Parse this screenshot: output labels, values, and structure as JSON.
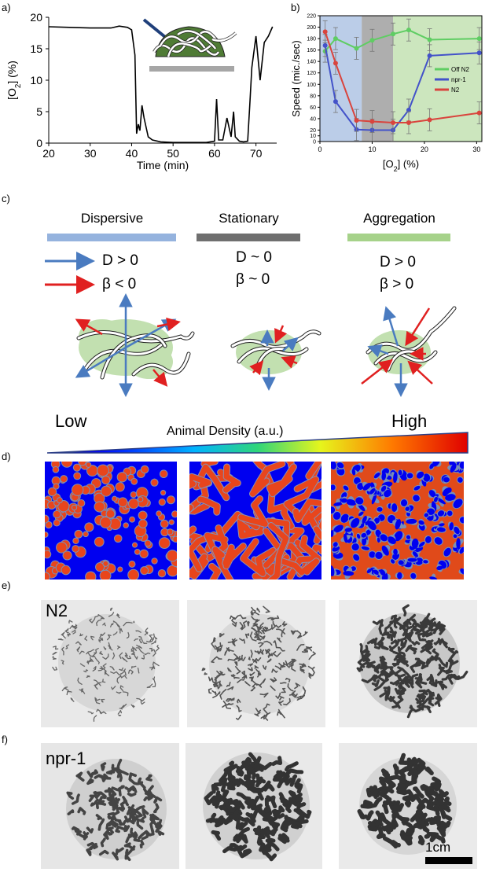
{
  "panel_labels": {
    "a": "a)",
    "b": "b)",
    "c": "c)",
    "d": "d)",
    "e": "e)",
    "f": "f)"
  },
  "chart_data": [
    {
      "panel": "a",
      "type": "line",
      "xlabel": "Time (min)",
      "ylabel": "[O2] (%)",
      "xlim": [
        20,
        75
      ],
      "ylim": [
        0,
        20
      ],
      "xticks": [
        "20",
        "30",
        "40",
        "50",
        "60",
        "70"
      ],
      "yticks": [
        "0",
        "5",
        "10",
        "15",
        "20"
      ],
      "x": [
        20,
        25,
        30,
        35,
        37,
        39,
        40,
        40.8,
        41.2,
        41.6,
        42,
        42.5,
        43,
        44,
        45,
        47,
        50,
        55,
        58,
        60,
        60.5,
        61,
        62,
        63,
        64,
        64.6,
        65,
        66,
        67,
        68,
        68.5,
        69,
        70,
        71,
        72,
        73,
        74
      ],
      "y": [
        18.5,
        18.4,
        18.3,
        18.3,
        18.6,
        18.4,
        18,
        14,
        1.5,
        3,
        2,
        6,
        4,
        1,
        0.5,
        0.2,
        0.1,
        0.1,
        0.1,
        0.3,
        7,
        0.5,
        0.5,
        4,
        1,
        5,
        1,
        0.3,
        0.2,
        0.3,
        6,
        12,
        17,
        10,
        16,
        17,
        18.5
      ]
    },
    {
      "panel": "b",
      "type": "line",
      "xlabel": "[O2] (%)",
      "ylabel": "Speed (mic./sec)",
      "xlim": [
        0,
        31
      ],
      "ylim": [
        0,
        220
      ],
      "xticks": [
        "0",
        "10",
        "20",
        "30"
      ],
      "yticks": [
        "0",
        "10",
        "20",
        "40",
        "60",
        "80",
        "100",
        "120",
        "140",
        "160",
        "180",
        "200",
        "220"
      ],
      "regions": [
        {
          "x0": 0,
          "x1": 8,
          "color": "#b4c8e6"
        },
        {
          "x0": 8,
          "x1": 14,
          "color": "#a5a5a5"
        },
        {
          "x0": 14,
          "x1": 31,
          "color": "#c6e3b7"
        }
      ],
      "series": [
        {
          "name": "Off N2",
          "color": "#5fcd63",
          "x": [
            1,
            3,
            7,
            10,
            14,
            17,
            21,
            30.5
          ],
          "y": [
            158,
            180,
            163,
            177,
            188,
            195,
            178,
            180
          ]
        },
        {
          "name": "npr-1",
          "color": "#4352c9",
          "x": [
            1,
            3,
            7,
            10,
            14,
            17,
            21,
            30.5
          ],
          "y": [
            168,
            70,
            21,
            20,
            20,
            55,
            150,
            155
          ]
        },
        {
          "name": "N2",
          "color": "#d9443d",
          "x": [
            1,
            3,
            7,
            10,
            14,
            17,
            21,
            30.5
          ],
          "y": [
            192,
            137,
            37,
            35,
            33,
            33,
            38,
            50
          ]
        }
      ]
    }
  ],
  "panel_c": {
    "columns": [
      {
        "title": "Dispersive",
        "bar_color": "#95b3de",
        "line1": "D > 0",
        "line2": "β < 0"
      },
      {
        "title": "Stationary",
        "bar_color": "#6f6f6f",
        "line1": "D ~ 0",
        "line2": "β ~ 0"
      },
      {
        "title": "Aggregation",
        "bar_color": "#a6d28a",
        "line1": "D > 0",
        "line2": "β > 0"
      }
    ],
    "arrow_colors": {
      "blue": "#4a7bc0",
      "red": "#e02020"
    }
  },
  "density_axis": {
    "low": "Low",
    "title": "Animal Density (a.u.)",
    "high": "High"
  },
  "row_labels": {
    "e": "N2",
    "f": "npr-1"
  },
  "scale_bar": "1cm"
}
